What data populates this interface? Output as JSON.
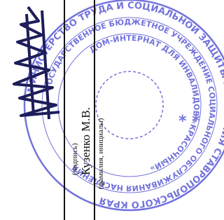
{
  "stamp": {
    "ring_1": "МИНИСТЕРСТВО ТРУДА И СОЦИАЛЬНОЙ ЗАЩИТЫ НАСЕЛЕНИЯ СТАВРОПОЛЬСКОГО КРАЯ",
    "ring_2": "ГОСУДАРСТВЕННОЕ БЮДЖЕТНОЕ УЧРЕЖДЕНИЕ СОЦИАЛЬНОГО ОБСЛУЖИВАНИЯ НАСЕЛЕНИЯ",
    "ring_3": "ДОМ-ИНТЕРНАТ ДЛЯ ИНВАЛИДОВ «КРАСОЧНЫЙ»"
  },
  "signature_block": {
    "signature_caption": "(подпись)",
    "name": "Кузенко М.В.",
    "name_caption": "(фамилия, инициалы)"
  }
}
